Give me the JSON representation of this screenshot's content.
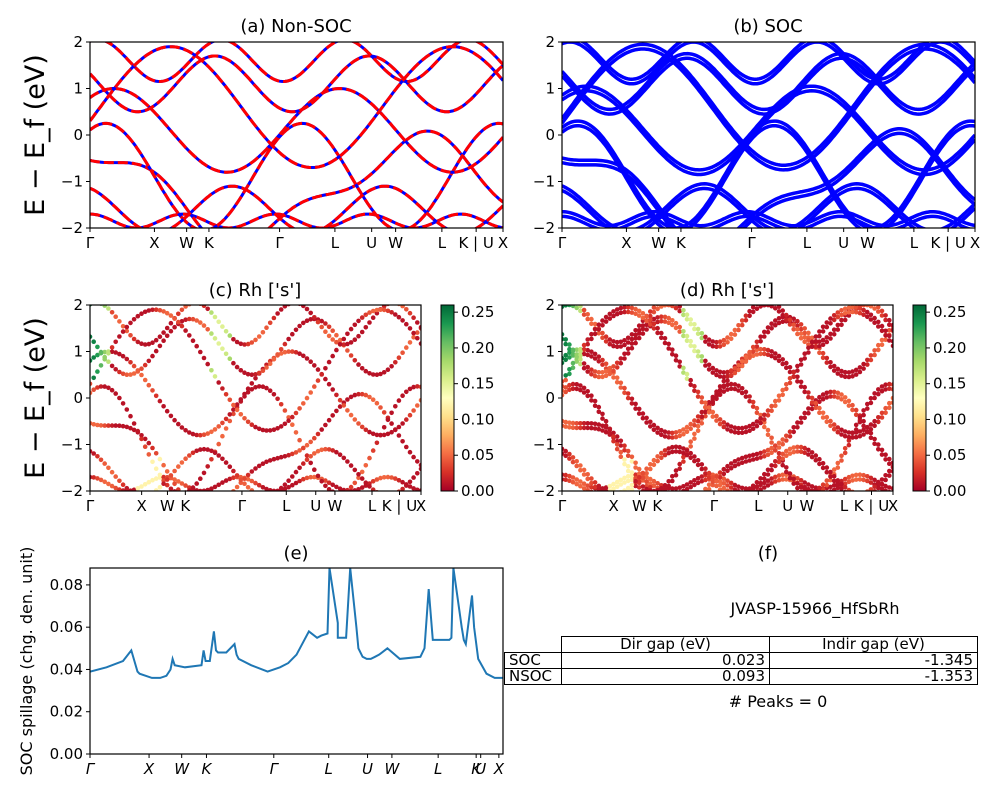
{
  "chart_data": [
    {
      "id": "a",
      "type": "line",
      "title": "(a) Non-SOC",
      "ylabel": "E − E_f (eV)",
      "ylim": [
        -2,
        2
      ],
      "yticks": [
        "2",
        "1",
        "0",
        "−1",
        "−2"
      ],
      "kpath_labels": [
        "Γ",
        "X",
        "W",
        "K",
        "Γ",
        "L",
        "U",
        "W",
        "L",
        "K | U",
        "X"
      ],
      "kpath_pos": [
        0,
        0.156,
        0.234,
        0.288,
        0.459,
        0.593,
        0.682,
        0.74,
        0.852,
        0.935,
        1.0
      ],
      "series": [
        {
          "color": "#0000ff",
          "style": "solid"
        },
        {
          "color": "#ff0000",
          "style": "dashed"
        }
      ]
    },
    {
      "id": "b",
      "type": "line",
      "title": "(b) SOC",
      "ylim": [
        -2,
        2
      ],
      "yticks": [
        "2",
        "1",
        "0",
        "−1",
        "−2"
      ],
      "kpath_labels": [
        "Γ",
        "X",
        "W",
        "K",
        "Γ",
        "L",
        "U",
        "W",
        "L",
        "K | U",
        "X"
      ],
      "kpath_pos": [
        0,
        0.156,
        0.234,
        0.288,
        0.459,
        0.593,
        0.682,
        0.74,
        0.852,
        0.935,
        1.0
      ],
      "series": [
        {
          "color": "#0000ff",
          "style": "solid"
        }
      ]
    },
    {
      "id": "c",
      "type": "scatter",
      "title": "(c)  Rh ['s']",
      "ylabel": "E − E_f (eV)",
      "ylim": [
        -2,
        2
      ],
      "yticks": [
        "2",
        "1",
        "0",
        "−1",
        "−2"
      ],
      "kpath_labels": [
        "Γ",
        "X",
        "W",
        "K",
        "Γ",
        "L",
        "U",
        "W",
        "L",
        "K | U",
        "X"
      ],
      "kpath_pos": [
        0,
        0.156,
        0.234,
        0.288,
        0.459,
        0.593,
        0.682,
        0.74,
        0.852,
        0.935,
        1.0
      ],
      "colorbar": {
        "range": [
          0.0,
          0.26
        ],
        "ticks": [
          "0.25",
          "0.20",
          "0.15",
          "0.10",
          "0.05",
          "0.00"
        ],
        "colormap": "RdYlGn"
      }
    },
    {
      "id": "d",
      "type": "scatter",
      "title": "(d) Rh ['s']",
      "ylim": [
        -2,
        2
      ],
      "yticks": [
        "2",
        "1",
        "0",
        "−1",
        "−2"
      ],
      "kpath_labels": [
        "Γ",
        "X",
        "W",
        "K",
        "Γ",
        "L",
        "U",
        "W",
        "L",
        "K | U",
        "X"
      ],
      "kpath_pos": [
        0,
        0.156,
        0.234,
        0.288,
        0.459,
        0.593,
        0.682,
        0.74,
        0.852,
        0.935,
        1.0
      ],
      "colorbar": {
        "range": [
          0.0,
          0.26
        ],
        "ticks": [
          "0.25",
          "0.20",
          "0.15",
          "0.10",
          "0.05",
          "0.00"
        ],
        "colormap": "RdYlGn"
      }
    },
    {
      "id": "e",
      "type": "line",
      "title": "(e)",
      "ylabel": "SOC spillage (chg. den. unit)",
      "ylim": [
        0,
        0.088
      ],
      "yticks": [
        "0.00",
        "0.02",
        "0.04",
        "0.06",
        "0.08"
      ],
      "kpath_labels": [
        "Γ",
        "X",
        "W",
        "K",
        "Γ",
        "L",
        "U",
        "W",
        "L",
        "K",
        "U",
        "X"
      ],
      "kpath_pos": [
        0,
        0.143,
        0.222,
        0.282,
        0.445,
        0.578,
        0.672,
        0.731,
        0.843,
        0.935,
        0.946,
        0.99
      ],
      "color": "#1f77b4",
      "x": [
        0,
        0.04,
        0.08,
        0.1,
        0.115,
        0.12,
        0.15,
        0.17,
        0.185,
        0.195,
        0.2,
        0.205,
        0.23,
        0.27,
        0.275,
        0.28,
        0.29,
        0.3,
        0.305,
        0.31,
        0.33,
        0.35,
        0.355,
        0.36,
        0.39,
        0.43,
        0.46,
        0.48,
        0.5,
        0.53,
        0.55,
        0.56,
        0.575,
        0.58,
        0.6,
        0.6,
        0.62,
        0.63,
        0.645,
        0.65,
        0.66,
        0.67,
        0.68,
        0.69,
        0.7,
        0.72,
        0.75,
        0.8,
        0.81,
        0.82,
        0.83,
        0.87,
        0.875,
        0.88,
        0.9,
        0.905,
        0.91,
        0.925,
        0.93,
        0.94,
        0.96,
        0.98,
        1.0
      ],
      "y": [
        0.039,
        0.041,
        0.044,
        0.049,
        0.039,
        0.038,
        0.036,
        0.036,
        0.037,
        0.04,
        0.045,
        0.042,
        0.041,
        0.042,
        0.049,
        0.044,
        0.044,
        0.058,
        0.049,
        0.048,
        0.048,
        0.052,
        0.047,
        0.045,
        0.042,
        0.039,
        0.041,
        0.043,
        0.047,
        0.058,
        0.055,
        0.056,
        0.057,
        0.088,
        0.062,
        0.055,
        0.055,
        0.088,
        0.06,
        0.05,
        0.046,
        0.045,
        0.045,
        0.046,
        0.047,
        0.05,
        0.045,
        0.046,
        0.05,
        0.078,
        0.054,
        0.054,
        0.055,
        0.088,
        0.06,
        0.054,
        0.052,
        0.075,
        0.06,
        0.045,
        0.038,
        0.036,
        0.036
      ]
    }
  ],
  "info": {
    "title": "(f)",
    "material": "JVASP-15966_HfSbRh",
    "table": {
      "headers": [
        "Dir gap (eV)",
        "Indir gap (eV)"
      ],
      "rows": [
        {
          "label": "SOC",
          "dir": "0.023",
          "indir": "-1.345"
        },
        {
          "label": "NSOC",
          "dir": "0.093",
          "indir": "-1.353"
        }
      ]
    },
    "peaks": "# Peaks = 0"
  }
}
